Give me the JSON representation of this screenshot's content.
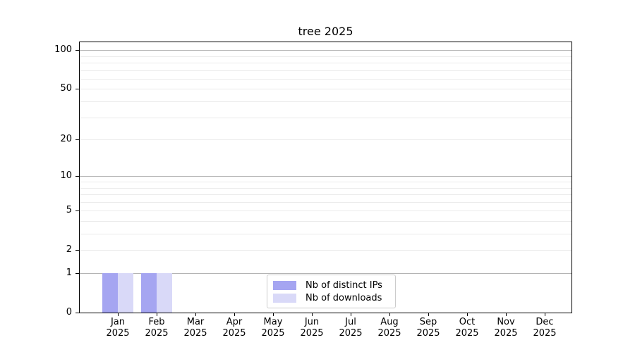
{
  "chart_data": {
    "type": "bar",
    "title": "tree 2025",
    "categories": [
      "Jan 2025",
      "Feb 2025",
      "Mar 2025",
      "Apr 2025",
      "May 2025",
      "Jun 2025",
      "Jul 2025",
      "Aug 2025",
      "Sep 2025",
      "Oct 2025",
      "Nov 2025",
      "Dec 2025"
    ],
    "series": [
      {
        "name": "Nb of distinct IPs",
        "color": "#a5a5f1",
        "values": [
          1,
          1,
          0,
          0,
          0,
          0,
          0,
          0,
          0,
          0,
          0,
          0
        ]
      },
      {
        "name": "Nb of downloads",
        "color": "#d9d9f8",
        "values": [
          1,
          1,
          0,
          0,
          0,
          0,
          0,
          0,
          0,
          0,
          0,
          0
        ]
      }
    ],
    "xlabel": "",
    "ylabel": "",
    "yscale": "log1p",
    "ylim": [
      0,
      115
    ],
    "yticks": [
      0,
      1,
      2,
      5,
      10,
      20,
      50,
      100
    ],
    "minor_yticks": [
      3,
      4,
      6,
      7,
      8,
      9,
      30,
      40,
      60,
      70,
      80,
      90
    ],
    "decade_gridlines": [
      1,
      10,
      100
    ],
    "grid": true,
    "legend_position": "lower-center-inside",
    "colors": {
      "grid_major": "#b4b4b4",
      "grid_minor": "#ebebeb",
      "axis": "#000000",
      "background": "#ffffff",
      "text": "#000000"
    }
  }
}
